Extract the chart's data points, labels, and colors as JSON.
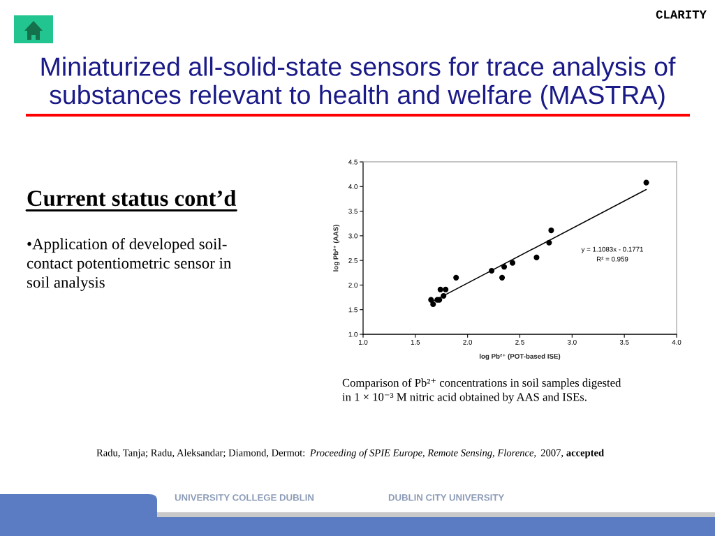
{
  "chart_data": {
    "type": "scatter",
    "title": "Miniaturized all-solid-state sensors for trace analysis of\nsubstances relevant to health and welfare (MASTRA)",
    "xlabel": "log Pb²⁺ (POT-based ISE)",
    "ylabel": "log Pb²⁺ (AAS)",
    "series": [
      {
        "type": "scatter",
        "color": "#000000",
        "marker": "circle",
        "x": [
          1.65,
          1.67,
          1.71,
          1.73,
          1.74,
          1.77,
          1.79,
          1.89,
          2.23,
          2.33,
          2.35,
          2.43,
          2.66,
          2.78,
          2.8,
          3.71
        ],
        "values": [
          1.7,
          1.61,
          1.7,
          1.7,
          1.91,
          1.78,
          1.91,
          2.15,
          2.29,
          2.15,
          2.37,
          2.45,
          2.56,
          2.86,
          3.11,
          4.08
        ]
      },
      {
        "type": "line",
        "color": "#000000",
        "marker": "none",
        "line_style": "solid",
        "x": [
          1.65,
          3.71
        ],
        "values": [
          1.65,
          3.94
        ]
      }
    ],
    "xlim": [
      1.0,
      4.0
    ],
    "xticks": [
      {
        "value": 1.0,
        "label": "1.0"
      },
      1.5,
      {
        "value": 2.0,
        "label": "2.0"
      },
      2.5,
      {
        "value": 3.0,
        "label": "3.0"
      },
      3.5,
      {
        "value": 4.0,
        "label": "4.0"
      }
    ],
    "ylim": [
      1.0,
      4.5
    ],
    "yticks": [
      {
        "value": 1.0,
        "label": "1.0"
      },
      1.5,
      {
        "value": 2.0,
        "label": "2.0"
      },
      2.5,
      {
        "value": 3.0,
        "label": "3.0"
      },
      3.5,
      {
        "value": 4.0,
        "label": "4.0"
      },
      4.5
    ],
    "annotations": [
      "CLARITY",
      "Current status cont’d",
      "•Application of developed soil-\ncontact potentiometric sensor in\nsoil analysis",
      "y = 1.1083x - 0.1771\nR² = 0.959",
      "Comparison of Pb²⁺ concentrations in soil samples digested\nin 1 × 10⁻³ M nitric acid obtained by AAS and ISEs.",
      "Radu, Tanja; Radu, Aleksandar; Diamond, Dermot:",
      "Proceeding of SPIE Europe, Remote Sensing, Florence,",
      "2007,",
      "accepted",
      "UNIVERSITY COLLEGE DUBLIN",
      "DUBLIN CITY UNIVERSITY"
    ]
  }
}
